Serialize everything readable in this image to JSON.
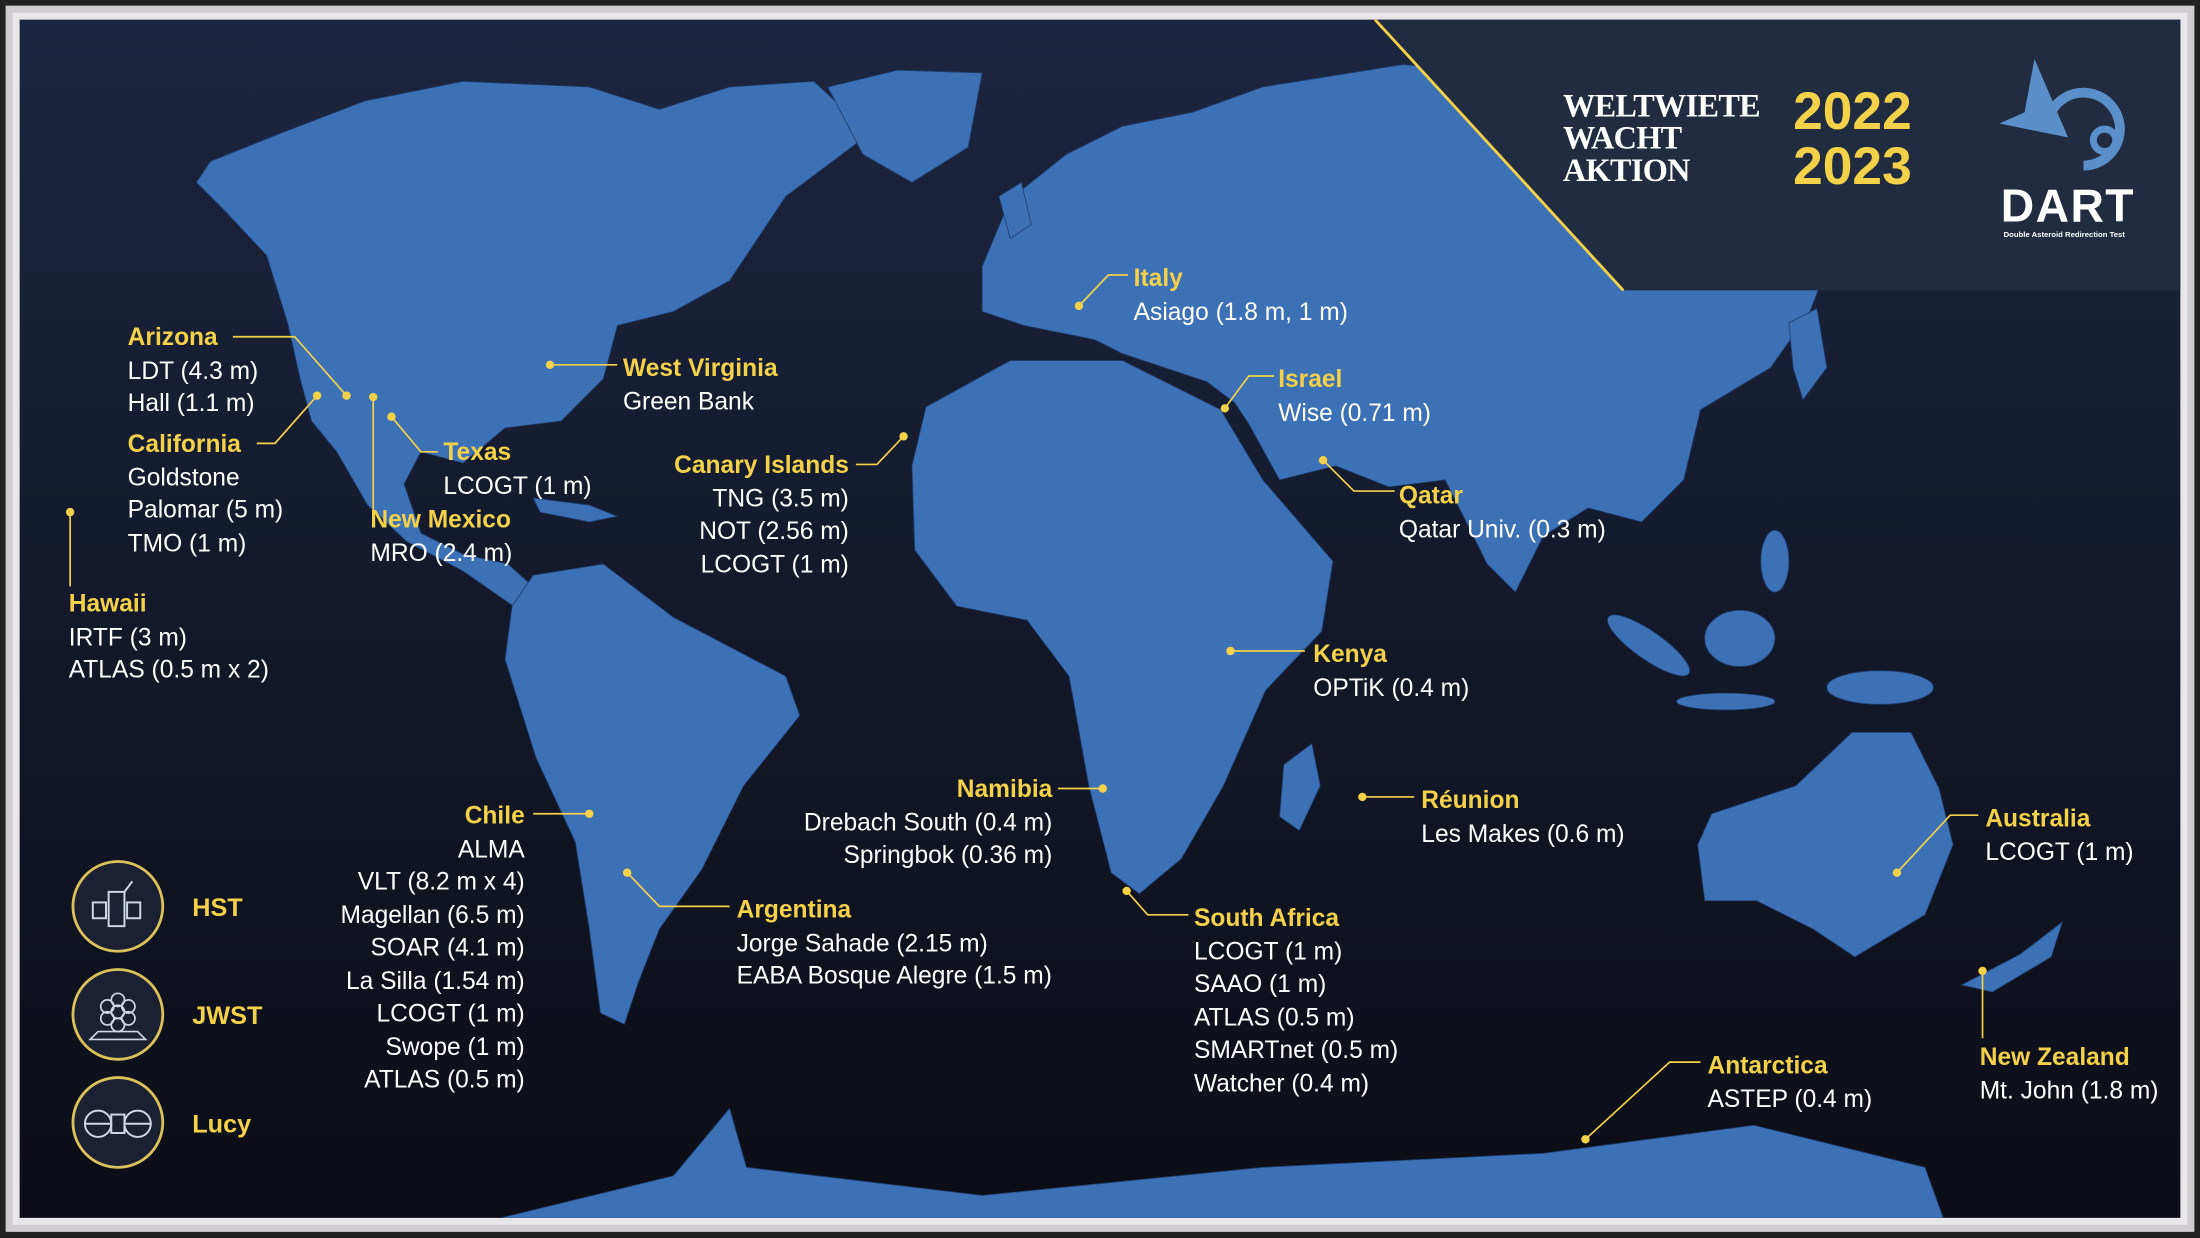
{
  "title": {
    "line1": "WELTWIETE",
    "line2": "WACHT",
    "line3": "AKTION",
    "year1": "2022",
    "year2": "2023"
  },
  "logo": {
    "name": "DART",
    "subtitle": "Double Asteroid Redirection Test"
  },
  "colors": {
    "land": "#3d71b6",
    "accent": "#f3d24a",
    "panel": "#212c40",
    "ocean": "#10121e"
  },
  "sites": [
    {
      "region": "Arizona",
      "items": [
        "LDT (4.3 m)",
        "Hall (1.1 m)"
      ]
    },
    {
      "region": "California",
      "items": [
        "Goldstone",
        "Palomar (5 m)",
        "TMO (1 m)"
      ]
    },
    {
      "region": "Hawaii",
      "items": [
        "IRTF (3 m)",
        "ATLAS (0.5 m x 2)"
      ]
    },
    {
      "region": "Texas",
      "items": [
        "LCOGT (1 m)"
      ]
    },
    {
      "region": "New Mexico",
      "items": [
        "MRO (2.4 m)"
      ]
    },
    {
      "region": "West Virginia",
      "items": [
        "Green Bank"
      ]
    },
    {
      "region": "Canary Islands",
      "items": [
        "TNG (3.5 m)",
        "NOT (2.56 m)",
        "LCOGT (1 m)"
      ]
    },
    {
      "region": "Italy",
      "items": [
        "Asiago (1.8 m, 1 m)"
      ]
    },
    {
      "region": "Israel",
      "items": [
        "Wise (0.71 m)"
      ]
    },
    {
      "region": "Qatar",
      "items": [
        "Qatar Univ. (0.3 m)"
      ]
    },
    {
      "region": "Kenya",
      "items": [
        "OPTiK (0.4 m)"
      ]
    },
    {
      "region": "Réunion",
      "items": [
        "Les Makes (0.6 m)"
      ]
    },
    {
      "region": "Australia",
      "items": [
        "LCOGT (1 m)"
      ]
    },
    {
      "region": "New Zealand",
      "items": [
        "Mt. John (1.8 m)"
      ]
    },
    {
      "region": "Antarctica",
      "items": [
        "ASTEP (0.4 m)"
      ]
    },
    {
      "region": "South Africa",
      "items": [
        "LCOGT (1 m)",
        "SAAO (1 m)",
        "ATLAS (0.5 m)",
        "SMARTnet (0.5 m)",
        "Watcher (0.4 m)"
      ]
    },
    {
      "region": "Namibia",
      "items": [
        "Drebach South (0.4 m)",
        "Springbok (0.36 m)"
      ]
    },
    {
      "region": "Argentina",
      "items": [
        "Jorge Sahade (2.15 m)",
        "EABA Bosque Alegre (1.5 m)"
      ]
    },
    {
      "region": "Chile",
      "items": [
        "ALMA",
        "VLT (8.2 m x 4)",
        "Magellan (6.5 m)",
        "SOAR (4.1 m)",
        "La Silla (1.54 m)",
        "LCOGT (1 m)",
        "Swope (1 m)",
        "ATLAS (0.5 m)"
      ]
    }
  ],
  "missions": [
    {
      "label": "HST",
      "icon": "hubble-telescope-icon"
    },
    {
      "label": "JWST",
      "icon": "jwst-mirror-icon"
    },
    {
      "label": "Lucy",
      "icon": "lucy-spacecraft-icon"
    }
  ]
}
